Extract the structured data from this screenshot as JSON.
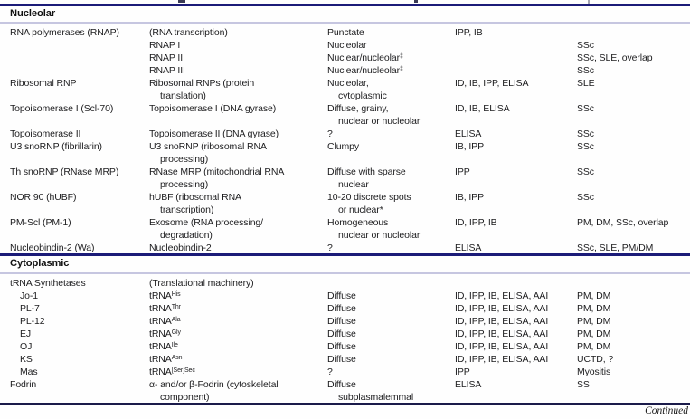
{
  "colors": {
    "section_rule_navy": "#1b1b78",
    "section_rule_lavender": "#c6c6e0",
    "bottom_rule": "#1a1a4a",
    "text": "#1c1c1e"
  },
  "footer": {
    "continued_label": "Continued"
  },
  "table": {
    "sections": [
      {
        "label": "Nucleolar",
        "rows": [
          {
            "antigen": [
              "RNA polymerases (RNAP)"
            ],
            "component": [
              "(RNA transcription)"
            ],
            "pattern": [
              "Punctate"
            ],
            "methods": [
              "IPP, IB"
            ],
            "diseases": []
          },
          {
            "antigen": [],
            "component": [
              "RNAP I"
            ],
            "pattern": [
              "Nucleolar"
            ],
            "methods": [],
            "diseases": [
              "SSc"
            ]
          },
          {
            "antigen": [],
            "component": [
              "RNAP II"
            ],
            "pattern": [
              "Nuclear/nucleolar^{‡}"
            ],
            "methods": [],
            "diseases": [
              "SSc, SLE, overlap"
            ]
          },
          {
            "antigen": [],
            "component": [
              "RNAP III"
            ],
            "pattern": [
              "Nuclear/nucleolar^{‡}"
            ],
            "methods": [],
            "diseases": [
              "SSc"
            ]
          },
          {
            "antigen": [
              "Ribosomal RNP"
            ],
            "component": [
              "Ribosomal RNPs (protein",
              "translation)"
            ],
            "pattern": [
              "Nucleolar,",
              "cytoplasmic"
            ],
            "methods": [
              "ID, IB, IPP, ELISA"
            ],
            "diseases": [
              "SLE"
            ]
          },
          {
            "antigen": [
              "Topoisomerase I (Scl-70)"
            ],
            "component": [
              "Topoisomerase I (DNA gyrase)"
            ],
            "pattern": [
              "Diffuse, grainy,",
              "nuclear or nucleolar"
            ],
            "methods": [
              "ID, IB, ELISA"
            ],
            "diseases": [
              "SSc"
            ]
          },
          {
            "antigen": [
              "Topoisomerase II"
            ],
            "component": [
              "Topoisomerase II (DNA gyrase)"
            ],
            "pattern": [
              "?"
            ],
            "methods": [
              "ELISA"
            ],
            "diseases": [
              "SSc"
            ]
          },
          {
            "antigen": [
              "U3 snoRNP (fibrillarin)"
            ],
            "component": [
              "U3 snoRNP (ribosomal RNA",
              "processing)"
            ],
            "pattern": [
              "Clumpy"
            ],
            "methods": [
              "IB, IPP"
            ],
            "diseases": [
              "SSc"
            ]
          },
          {
            "antigen": [
              "Th snoRNP (RNase MRP)"
            ],
            "component": [
              "RNase MRP (mitochondrial RNA",
              "processing)"
            ],
            "pattern": [
              "Diffuse with sparse",
              "nuclear"
            ],
            "methods": [
              "IPP"
            ],
            "diseases": [
              "SSc"
            ]
          },
          {
            "antigen": [
              "NOR 90 (hUBF)"
            ],
            "component": [
              "hUBF (ribosomal RNA",
              "transcription)"
            ],
            "pattern": [
              "10-20 discrete spots",
              "or nuclear*"
            ],
            "methods": [
              "IB, IPP"
            ],
            "diseases": [
              "SSc"
            ]
          },
          {
            "antigen": [
              "PM-Scl (PM-1)"
            ],
            "component": [
              "Exosome (RNA processing/",
              "degradation)"
            ],
            "pattern": [
              "Homogeneous",
              "nuclear or nucleolar"
            ],
            "methods": [
              "ID, IPP, IB"
            ],
            "diseases": [
              "PM, DM, SSc, overlap"
            ]
          },
          {
            "antigen": [
              "Nucleobindin-2 (Wa)"
            ],
            "component": [
              "Nucleobindin-2"
            ],
            "pattern": [
              "?"
            ],
            "methods": [
              "ELISA"
            ],
            "diseases": [
              "SSc, SLE, PM/DM"
            ]
          }
        ]
      },
      {
        "label": "Cytoplasmic",
        "rows": [
          {
            "antigen": [
              "tRNA Synthetases"
            ],
            "component": [
              "(Translational machinery)"
            ],
            "pattern": [],
            "methods": [],
            "diseases": []
          },
          {
            "indent": true,
            "antigen": [
              "Jo-1"
            ],
            "component": [
              "tRNA^{His}"
            ],
            "pattern": [
              "Diffuse"
            ],
            "methods": [
              "ID, IPP, IB, ELISA, AAI"
            ],
            "diseases": [
              "PM, DM"
            ]
          },
          {
            "indent": true,
            "antigen": [
              "PL-7"
            ],
            "component": [
              "tRNA^{Thr}"
            ],
            "pattern": [
              "Diffuse"
            ],
            "methods": [
              "ID, IPP, IB, ELISA, AAI"
            ],
            "diseases": [
              "PM, DM"
            ]
          },
          {
            "indent": true,
            "antigen": [
              "PL-12"
            ],
            "component": [
              "tRNA^{Ala}"
            ],
            "pattern": [
              "Diffuse"
            ],
            "methods": [
              "ID, IPP, IB, ELISA, AAI"
            ],
            "diseases": [
              "PM, DM"
            ]
          },
          {
            "indent": true,
            "antigen": [
              "EJ"
            ],
            "component": [
              "tRNA^{Gly}"
            ],
            "pattern": [
              "Diffuse"
            ],
            "methods": [
              "ID, IPP, IB, ELISA, AAI"
            ],
            "diseases": [
              "PM, DM"
            ]
          },
          {
            "indent": true,
            "antigen": [
              "OJ"
            ],
            "component": [
              "tRNA^{Ile}"
            ],
            "pattern": [
              "Diffuse"
            ],
            "methods": [
              "ID, IPP, IB, ELISA, AAI"
            ],
            "diseases": [
              "PM, DM"
            ]
          },
          {
            "indent": true,
            "antigen": [
              "KS"
            ],
            "component": [
              "tRNA^{Asn}"
            ],
            "pattern": [
              "Diffuse"
            ],
            "methods": [
              "ID, IPP, IB, ELISA, AAI"
            ],
            "diseases": [
              "UCTD, ?"
            ]
          },
          {
            "indent": true,
            "antigen": [
              "Mas"
            ],
            "component": [
              "tRNA^{[Ser]Sec}"
            ],
            "pattern": [
              "?"
            ],
            "methods": [
              "IPP"
            ],
            "diseases": [
              "Myositis"
            ]
          },
          {
            "antigen": [
              "Fodrin"
            ],
            "component": [
              "α- and/or β-Fodrin (cytoskeletal",
              "component)"
            ],
            "pattern": [
              "Diffuse",
              "subplasmalemmal"
            ],
            "methods": [
              "ELISA"
            ],
            "diseases": [
              "SS"
            ]
          }
        ]
      }
    ]
  }
}
